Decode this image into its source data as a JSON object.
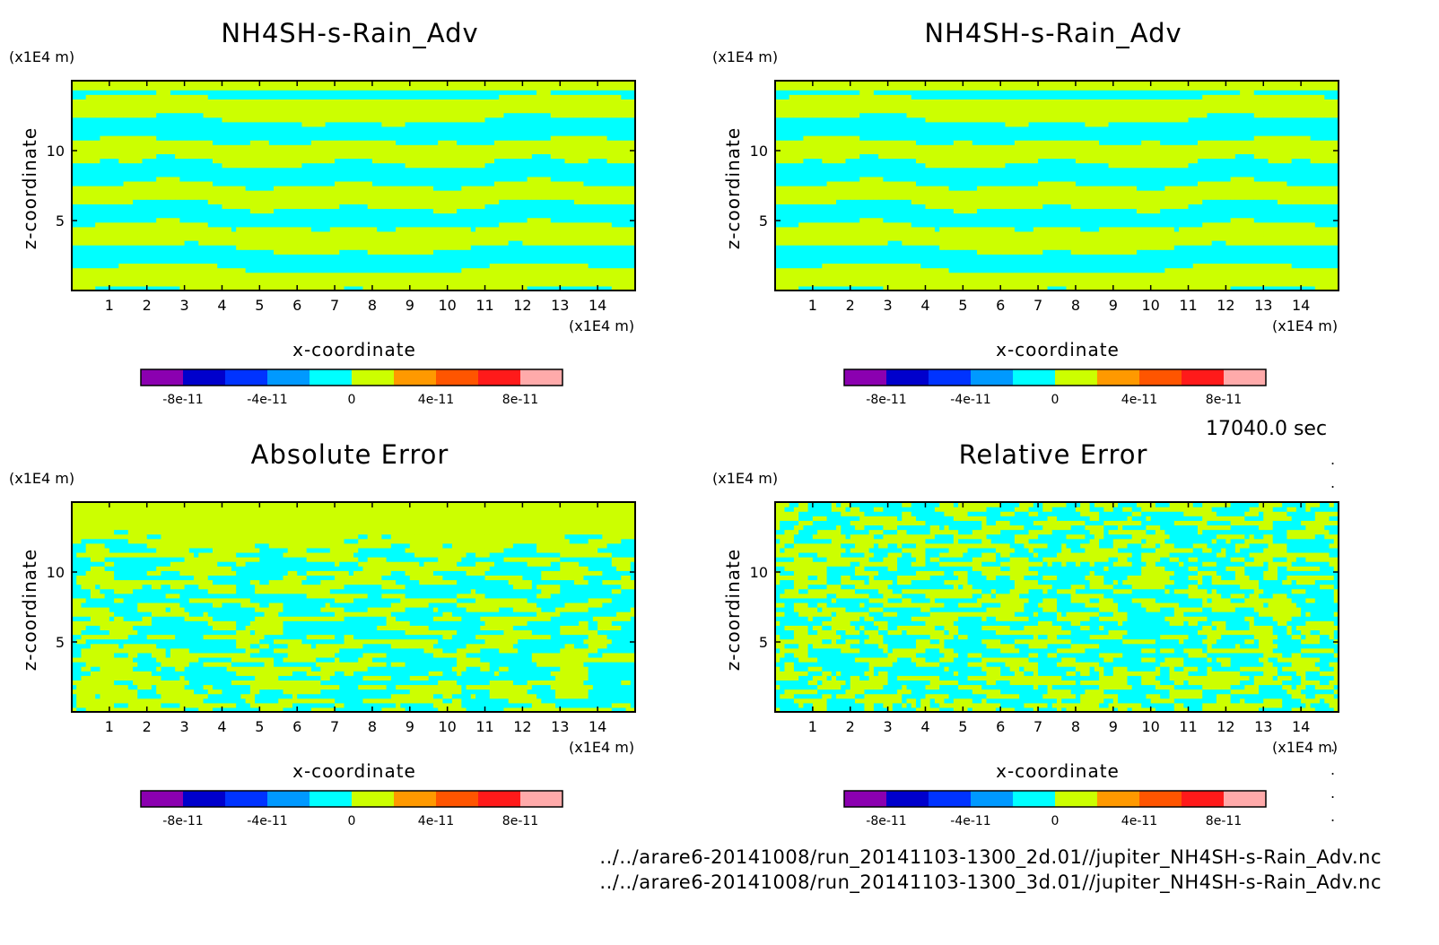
{
  "time_label": "17040.0 sec",
  "files": [
    "../../arare6-20141008/run_20141103-1300_2d.01//jupiter_NH4SH-s-Rain_Adv.nc",
    "../../arare6-20141008/run_20141103-1300_3d.01//jupiter_NH4SH-s-Rain_Adv.nc"
  ],
  "colors": {
    "field_positive": "#ccff00",
    "field_negative": "#00ffff",
    "colorbar": [
      "#8b00b0",
      "#0000cc",
      "#0033ff",
      "#0099ff",
      "#00ffff",
      "#ccff00",
      "#ff9900",
      "#ff5500",
      "#ff1a1a",
      "#ffaaaa"
    ]
  },
  "chart_data": [
    {
      "type": "heatmap",
      "title": "NH4SH-s-Rain_Adv",
      "xlabel": "x-coordinate",
      "ylabel": "z-coordinate",
      "x_unit": "(x1E4 m)",
      "y_unit": "(x1E4 m)",
      "xlim": [
        0,
        15
      ],
      "ylim": [
        0,
        15
      ],
      "x_ticks": [
        1,
        2,
        3,
        4,
        5,
        6,
        7,
        8,
        9,
        10,
        11,
        12,
        13,
        14
      ],
      "y_ticks": [
        5,
        10
      ],
      "colorbar": {
        "levels": [
          -1e-10,
          -8e-11,
          -6e-11,
          -4e-11,
          -2e-11,
          0,
          2e-11,
          4e-11,
          6e-11,
          8e-11,
          1e-10
        ],
        "tick_labels": [
          "-8e-11",
          "-4e-11",
          "0",
          "4e-11",
          "8e-11"
        ]
      },
      "pattern": "layered"
    },
    {
      "type": "heatmap",
      "title": "NH4SH-s-Rain_Adv",
      "xlabel": "x-coordinate",
      "ylabel": "z-coordinate",
      "x_unit": "(x1E4 m)",
      "y_unit": "(x1E4 m)",
      "xlim": [
        0,
        15
      ],
      "ylim": [
        0,
        15
      ],
      "x_ticks": [
        1,
        2,
        3,
        4,
        5,
        6,
        7,
        8,
        9,
        10,
        11,
        12,
        13,
        14
      ],
      "y_ticks": [
        5,
        10
      ],
      "colorbar": {
        "levels": [
          -1e-10,
          -8e-11,
          -6e-11,
          -4e-11,
          -2e-11,
          0,
          2e-11,
          4e-11,
          6e-11,
          8e-11,
          1e-10
        ],
        "tick_labels": [
          "-8e-11",
          "-4e-11",
          "0",
          "4e-11",
          "8e-11"
        ]
      },
      "pattern": "layered"
    },
    {
      "type": "heatmap",
      "title": "Absolute Error",
      "xlabel": "x-coordinate",
      "ylabel": "z-coordinate",
      "x_unit": "(x1E4 m)",
      "y_unit": "(x1E4 m)",
      "xlim": [
        0,
        15
      ],
      "ylim": [
        0,
        15
      ],
      "x_ticks": [
        1,
        2,
        3,
        4,
        5,
        6,
        7,
        8,
        9,
        10,
        11,
        12,
        13,
        14
      ],
      "y_ticks": [
        5,
        10
      ],
      "colorbar": {
        "levels": [
          -1e-10,
          -8e-11,
          -6e-11,
          -4e-11,
          -2e-11,
          0,
          2e-11,
          4e-11,
          6e-11,
          8e-11,
          1e-10
        ],
        "tick_labels": [
          "-8e-11",
          "-4e-11",
          "0",
          "4e-11",
          "8e-11"
        ]
      },
      "pattern": "blotchy_top_flat"
    },
    {
      "type": "heatmap",
      "title": "Relative Error",
      "xlabel": "x-coordinate",
      "ylabel": "z-coordinate",
      "x_unit": "(x1E4 m)",
      "y_unit": "(x1E4 m)",
      "xlim": [
        0,
        15
      ],
      "ylim": [
        0,
        15
      ],
      "x_ticks": [
        1,
        2,
        3,
        4,
        5,
        6,
        7,
        8,
        9,
        10,
        11,
        12,
        13,
        14
      ],
      "y_ticks": [
        5,
        10
      ],
      "colorbar": {
        "levels": [
          -1e-10,
          -8e-11,
          -6e-11,
          -4e-11,
          -2e-11,
          0,
          2e-11,
          4e-11,
          6e-11,
          8e-11,
          1e-10
        ],
        "tick_labels": [
          "-8e-11",
          "-4e-11",
          "0",
          "4e-11",
          "8e-11"
        ]
      },
      "pattern": "noisy"
    }
  ]
}
